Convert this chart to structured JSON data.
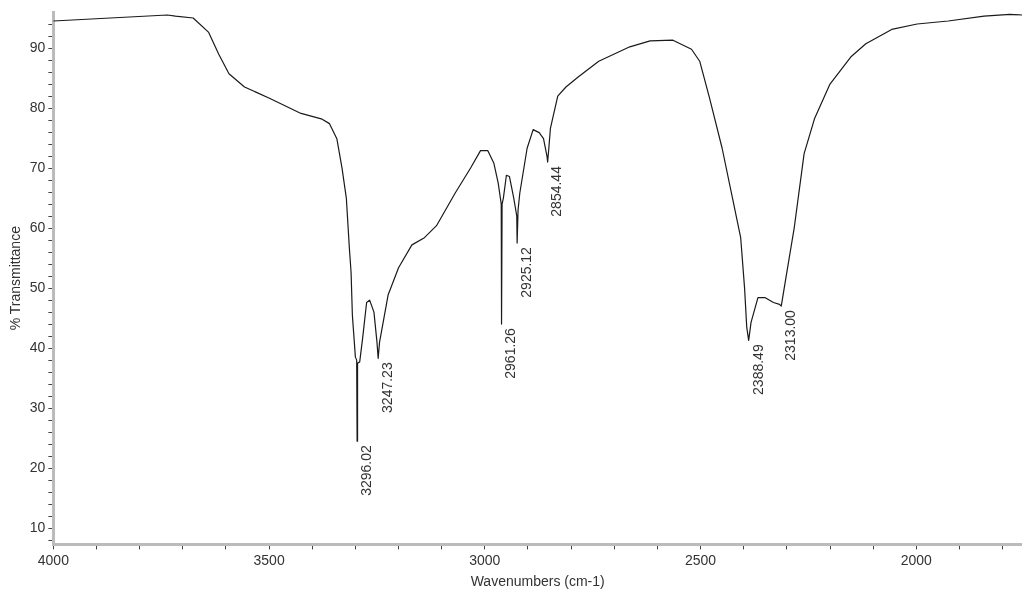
{
  "chart_data": {
    "type": "line",
    "xlabel": "Wavenumbers (cm-1)",
    "ylabel": "% Transmittance",
    "xlim": [
      4000,
      1755
    ],
    "ylim": [
      7.3,
      96
    ],
    "xticks": [
      4000,
      {
        "value": 3900,
        "label": null
      },
      {
        "value": 3800,
        "label": null
      },
      {
        "value": 3700,
        "label": null
      },
      {
        "value": 3600,
        "label": null
      },
      3500,
      {
        "value": 3400,
        "label": null
      },
      {
        "value": 3300,
        "label": null
      },
      {
        "value": 3200,
        "label": null
      },
      {
        "value": 3100,
        "label": null
      },
      3000,
      {
        "value": 2900,
        "label": null
      },
      {
        "value": 2800,
        "label": null
      },
      {
        "value": 2700,
        "label": null
      },
      {
        "value": 2600,
        "label": null
      },
      2500,
      {
        "value": 2400,
        "label": null
      },
      {
        "value": 2300,
        "label": null
      },
      {
        "value": 2200,
        "label": null
      },
      {
        "value": 2100,
        "label": null
      },
      2000,
      {
        "value": 1900,
        "label": null
      },
      {
        "value": 1800,
        "label": null
      }
    ],
    "yticks": [
      {
        "value": 8,
        "label": null
      },
      10,
      {
        "value": 12,
        "label": null
      },
      {
        "value": 14,
        "label": null
      },
      {
        "value": 16,
        "label": null
      },
      {
        "value": 18,
        "label": null
      },
      20,
      {
        "value": 22,
        "label": null
      },
      {
        "value": 24,
        "label": null
      },
      {
        "value": 26,
        "label": null
      },
      {
        "value": 28,
        "label": null
      },
      30,
      {
        "value": 32,
        "label": null
      },
      {
        "value": 34,
        "label": null
      },
      {
        "value": 36,
        "label": null
      },
      {
        "value": 38,
        "label": null
      },
      40,
      {
        "value": 42,
        "label": null
      },
      {
        "value": 44,
        "label": null
      },
      {
        "value": 46,
        "label": null
      },
      {
        "value": 48,
        "label": null
      },
      50,
      {
        "value": 52,
        "label": null
      },
      {
        "value": 54,
        "label": null
      },
      {
        "value": 56,
        "label": null
      },
      {
        "value": 58,
        "label": null
      },
      60,
      {
        "value": 62,
        "label": null
      },
      {
        "value": 64,
        "label": null
      },
      {
        "value": 66,
        "label": null
      },
      {
        "value": 68,
        "label": null
      },
      70,
      {
        "value": 72,
        "label": null
      },
      {
        "value": 74,
        "label": null
      },
      {
        "value": 76,
        "label": null
      },
      {
        "value": 78,
        "label": null
      },
      80,
      {
        "value": 82,
        "label": null
      },
      {
        "value": 84,
        "label": null
      },
      {
        "value": 86,
        "label": null
      },
      {
        "value": 88,
        "label": null
      },
      90,
      {
        "value": 92,
        "label": null
      },
      {
        "value": 94,
        "label": null
      }
    ],
    "grid": false,
    "legend": false,
    "marker": "none",
    "line_style": "solid",
    "series": [
      {
        "color": "#1a1a1a",
        "x": [
          4000,
          3736,
          3717,
          3676,
          3640,
          3617,
          3593,
          3557,
          3498,
          3426,
          3379,
          3360,
          3343,
          3331,
          3321,
          3314,
          3310,
          3307,
          3300,
          3297,
          3296.02,
          3295,
          3290,
          3283,
          3274,
          3267,
          3257,
          3250,
          3247.23,
          3244,
          3240,
          3224,
          3200,
          3169,
          3140,
          3112,
          3069,
          3033,
          3010,
          2993,
          2979,
          2969,
          2964,
          2962,
          2961.26,
          2960,
          2957,
          2950,
          2943,
          2933,
          2929,
          2926,
          2925.12,
          2923,
          2919,
          2902,
          2888,
          2874,
          2864,
          2856,
          2854.44,
          2852,
          2848,
          2831,
          2812,
          2783,
          2736,
          2664,
          2617,
          2564,
          2521,
          2502,
          2479,
          2450,
          2426,
          2407,
          2398,
          2393,
          2388.49,
          2383,
          2367,
          2350,
          2331,
          2317,
          2313,
          2302,
          2283,
          2260,
          2236,
          2200,
          2152,
          2117,
          2057,
          1998,
          1926,
          1843,
          1783,
          1755
        ],
        "values": [
          94.5,
          95.5,
          95.3,
          95.0,
          92.6,
          89,
          85.7,
          83.5,
          81.6,
          79.1,
          78.2,
          77.4,
          74.9,
          70,
          65,
          56.7,
          52.6,
          45.5,
          38.5,
          38,
          24.5,
          37.5,
          37.7,
          41.8,
          47.6,
          48,
          46,
          41,
          38.3,
          41,
          42.6,
          48.9,
          53.4,
          57.2,
          58.4,
          60.4,
          65.8,
          70,
          72.9,
          72.9,
          70.8,
          67.5,
          65,
          64,
          44,
          64,
          65,
          68.8,
          68.6,
          65,
          63.3,
          62,
          57.5,
          63,
          65.8,
          73.3,
          76.4,
          75.9,
          74.9,
          72,
          71,
          73,
          76.6,
          82,
          83.5,
          85.2,
          87.8,
          90.2,
          91.2,
          91.3,
          89.8,
          87.8,
          81.6,
          73.3,
          65,
          58.4,
          50,
          43.5,
          41.3,
          44.3,
          48.4,
          48.4,
          47.6,
          47.3,
          47,
          51.8,
          60,
          72.4,
          78.2,
          84,
          88.5,
          90.7,
          93.1,
          94,
          94.5,
          95.3,
          95.6,
          95.5
        ]
      }
    ],
    "annotations": [
      {
        "text": "3296.02",
        "x": 3296.02,
        "y": 24.5
      },
      {
        "text": "3247.23",
        "x": 3247.23,
        "y": 38.3
      },
      {
        "text": "2961.26",
        "x": 2961.26,
        "y": 44
      },
      {
        "text": "2925.12",
        "x": 2925.12,
        "y": 57.5
      },
      {
        "text": "2854.44",
        "x": 2854.44,
        "y": 71
      },
      {
        "text": "2388.49",
        "x": 2388.49,
        "y": 41.3
      },
      {
        "text": "2313.00",
        "x": 2313.0,
        "y": 47
      }
    ]
  }
}
